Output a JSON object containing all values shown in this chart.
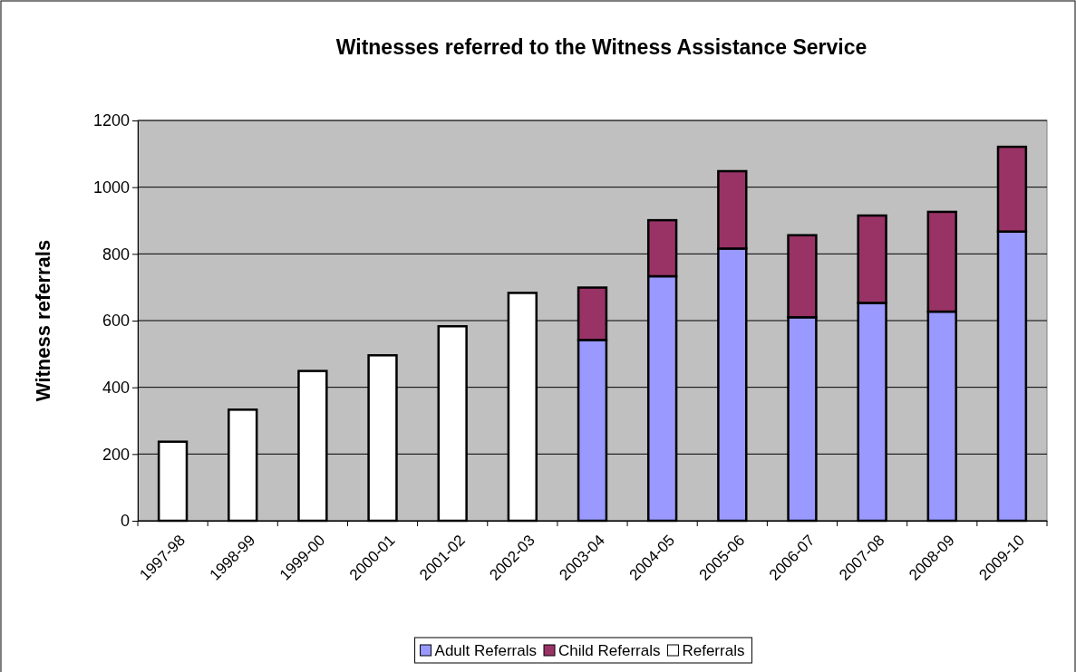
{
  "chart_data": {
    "type": "bar",
    "title": "Witnesses referred to the Witness Assistance Service",
    "ylabel": "Witness referrals",
    "categories": [
      "1997-98",
      "1998-99",
      "1999-00",
      "2000-01",
      "2001-02",
      "2002-03",
      "2003-04",
      "2004-05",
      "2005-06",
      "2006-07",
      "2007-08",
      "2008-09",
      "2009-10"
    ],
    "series": [
      {
        "name": "Adult Referrals",
        "color": "#9999ff",
        "values": [
          null,
          null,
          null,
          null,
          null,
          null,
          542,
          733,
          816,
          610,
          653,
          627,
          867
        ]
      },
      {
        "name": "Child Referrals",
        "color": "#993366",
        "values": [
          null,
          null,
          null,
          null,
          null,
          null,
          157,
          168,
          232,
          246,
          262,
          299,
          254
        ]
      },
      {
        "name": "Referrals",
        "color": "#ffffff",
        "values": [
          237,
          333,
          449,
          496,
          583,
          683,
          null,
          null,
          null,
          null,
          null,
          null,
          null
        ]
      }
    ],
    "stacked": true,
    "ylim": [
      0,
      1200
    ],
    "yticks": [
      0,
      200,
      400,
      600,
      800,
      1000,
      1200
    ],
    "grid": "y",
    "legend": "bottom"
  }
}
